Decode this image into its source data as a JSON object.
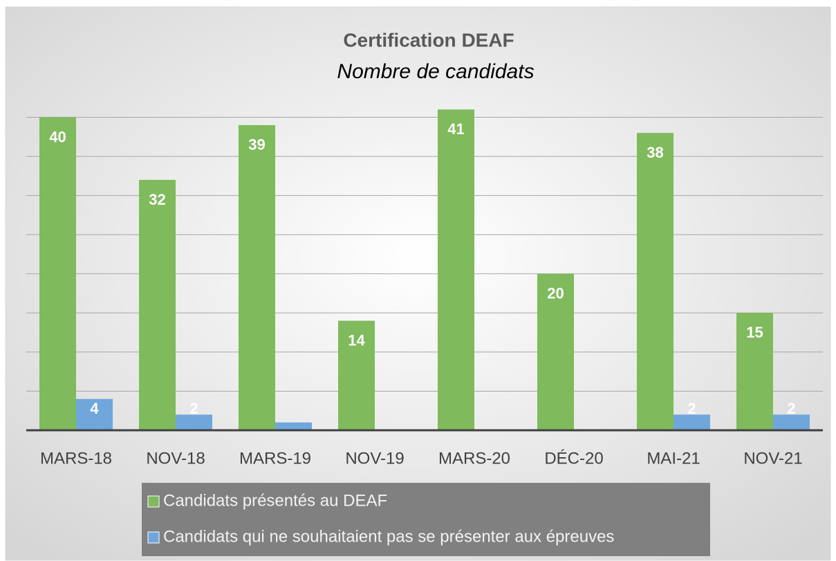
{
  "chart_data": {
    "type": "bar",
    "title": "Certification DEAF",
    "subtitle": "Nombre de candidats",
    "categories": [
      "MARS-18",
      "NOV-18",
      "MARS-19",
      "NOV-19",
      "MARS-20",
      "DÉC-20",
      "MAI-21",
      "NOV-21"
    ],
    "series": [
      {
        "name": "Candidats présentés au DEAF",
        "color": "#7fba5c",
        "values": [
          40,
          32,
          39,
          14,
          41,
          20,
          38,
          15
        ]
      },
      {
        "name": "Candidats qui ne souhaitaient pas se présenter aux épreuves",
        "color": "#6fa6dc",
        "values": [
          4,
          2,
          1,
          0,
          0,
          0,
          2,
          2
        ],
        "value_labels": [
          "4",
          "2",
          null,
          null,
          null,
          null,
          "2",
          "2"
        ]
      }
    ],
    "ylim": [
      0,
      45
    ],
    "yticks": [
      0,
      5,
      10,
      15,
      20,
      25,
      30,
      35,
      40
    ],
    "grid": true,
    "legend": "bottom"
  }
}
